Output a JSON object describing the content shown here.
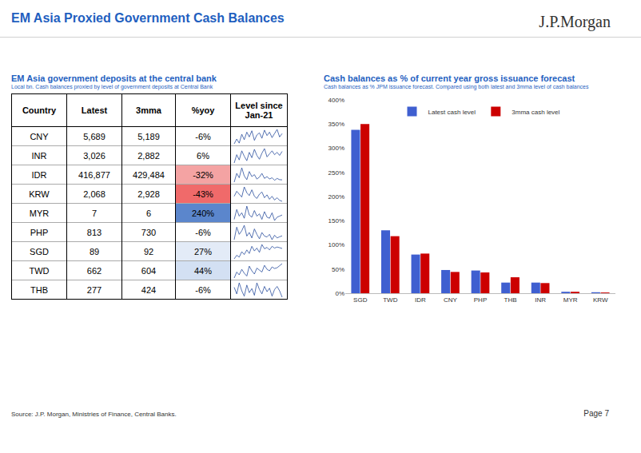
{
  "header": {
    "title": "EM Asia Proxied Government Cash Balances",
    "logo": "J.P.Morgan"
  },
  "table": {
    "title": "EM Asia government deposits at the central bank",
    "subtitle": "Local bn. Cash balances proxied by level of government deposits at Central Bank",
    "columns": [
      "Country",
      "Latest",
      "3mma",
      "%yoy",
      "Level since Jan-21"
    ],
    "rows": [
      {
        "country": "CNY",
        "latest": "5,689",
        "mma3": "5,189",
        "yoy": "-6%",
        "color": "#ffffff",
        "level": [
          4200,
          4900,
          4300,
          5600,
          4800,
          5900,
          5200,
          6100,
          4700,
          5500,
          5800,
          5000,
          6200,
          5400,
          5900,
          5100,
          5700,
          6300,
          5200,
          5689
        ]
      },
      {
        "country": "INR",
        "latest": "3,026",
        "mma3": "2,882",
        "yoy": "6%",
        "color": "#ffffff",
        "level": [
          1500,
          2600,
          1900,
          3100,
          2400,
          1800,
          2900,
          2200,
          3300,
          2500,
          2000,
          2800,
          3400,
          2300,
          2700,
          3100,
          2600,
          2900,
          2500,
          3026
        ]
      },
      {
        "country": "IDR",
        "latest": "416,877",
        "mma3": "429,484",
        "yoy": "-32%",
        "color": "#f4a3a3",
        "level": [
          380000,
          520000,
          450000,
          610000,
          480000,
          420000,
          550000,
          470000,
          500000,
          430000,
          460000,
          520000,
          440000,
          470000,
          430000,
          450000,
          410000,
          440000,
          420000,
          416877
        ]
      },
      {
        "country": "KRW",
        "latest": "2,068",
        "mma3": "2,928",
        "yoy": "-43%",
        "color": "#f06a6a",
        "level": [
          9000,
          16000,
          12000,
          8000,
          22000,
          14000,
          10000,
          18000,
          9000,
          6000,
          12000,
          15000,
          7000,
          11000,
          5000,
          9000,
          4000,
          7000,
          3500,
          2068
        ]
      },
      {
        "country": "MYR",
        "latest": "7",
        "mma3": "6",
        "yoy": "240%",
        "color": "#5b86cc",
        "level": [
          3,
          12,
          6,
          9,
          4,
          15,
          7,
          5,
          11,
          6,
          8,
          3,
          10,
          5,
          4,
          9,
          2,
          5,
          6,
          7
        ]
      },
      {
        "country": "PHP",
        "latest": "813",
        "mma3": "730",
        "yoy": "-6%",
        "color": "#ffffff",
        "level": [
          600,
          1300,
          900,
          1100,
          1400,
          800,
          1000,
          700,
          1200,
          900,
          650,
          1000,
          800,
          750,
          900,
          600,
          850,
          700,
          760,
          813
        ]
      },
      {
        "country": "SGD",
        "latest": "89",
        "mma3": "92",
        "yoy": "27%",
        "color": "#e3ebf7",
        "level": [
          60,
          70,
          65,
          80,
          72,
          85,
          75,
          95,
          82,
          90,
          78,
          100,
          88,
          92,
          85,
          95,
          90,
          93,
          91,
          89
        ]
      },
      {
        "country": "TWD",
        "latest": "662",
        "mma3": "604",
        "yoy": "44%",
        "color": "#d3e0f3",
        "level": [
          300,
          450,
          380,
          520,
          420,
          350,
          600,
          480,
          400,
          550,
          500,
          450,
          620,
          520,
          480,
          580,
          540,
          560,
          610,
          662
        ]
      },
      {
        "country": "THB",
        "latest": "277",
        "mma3": "424",
        "yoy": "-6%",
        "color": "#ffffff",
        "level": [
          500,
          350,
          600,
          420,
          300,
          550,
          380,
          470,
          320,
          600,
          450,
          350,
          520,
          400,
          480,
          300,
          450,
          520,
          420,
          277
        ]
      }
    ]
  },
  "chart_data": {
    "type": "bar",
    "title": "Cash balances as % of current year gross issuance forecast",
    "subtitle": "Cash balances as % JPM issuance forecast. Compared using both latest and 3mma level of cash balances",
    "categories": [
      "SGD",
      "TWD",
      "IDR",
      "CNY",
      "PHP",
      "THB",
      "INR",
      "MYR",
      "KRW"
    ],
    "series": [
      {
        "name": "Latest cash level",
        "color": "#3f5fd0",
        "values": [
          338,
          130,
          80,
          48,
          47,
          22,
          22,
          3,
          2
        ]
      },
      {
        "name": "3mma cash level",
        "color": "#cc0000",
        "values": [
          350,
          118,
          82,
          44,
          43,
          33,
          21,
          3,
          1.5
        ]
      }
    ],
    "ylim": [
      0,
      400
    ],
    "yticks": [
      {
        "value": 0,
        "label": "0%"
      },
      {
        "value": 50,
        "label": "50%"
      },
      {
        "value": 100,
        "label": "100%"
      },
      {
        "value": 150,
        "label": "150%"
      },
      {
        "value": 200,
        "label": "200%"
      },
      {
        "value": 250,
        "label": "250%"
      },
      {
        "value": 300,
        "label": "300%"
      },
      {
        "value": 350,
        "label": "350%"
      },
      {
        "value": 400,
        "label": "400%"
      }
    ],
    "grid": false,
    "legend": "top"
  },
  "footer": {
    "source": "Source: J.P. Morgan, Ministries of Finance, Central Banks.",
    "page": "Page 7"
  }
}
